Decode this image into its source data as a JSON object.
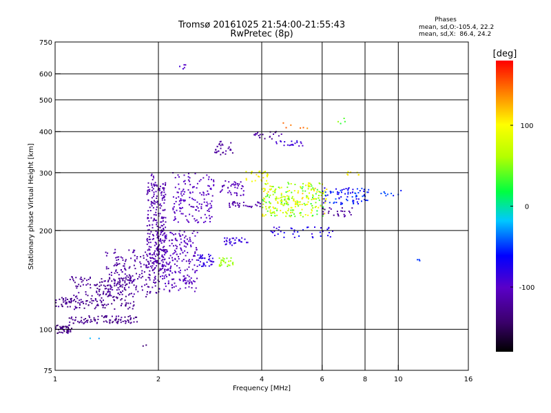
{
  "chart_data": {
    "type": "scatter",
    "title_line1": "Tromsø 20161025 21:54:00-21:55:43",
    "title_line2": "RwPretec (8p)",
    "xlabel": "Frequency [MHz]",
    "ylabel": "Stationary phase Virtual Height [km]",
    "x_scale": "log",
    "y_scale": "log",
    "xlim": [
      1,
      16
    ],
    "ylim": [
      75,
      750
    ],
    "x_ticks": [
      1,
      2,
      4,
      6,
      8,
      10,
      16
    ],
    "y_ticks": [
      75,
      100,
      200,
      300,
      400,
      500,
      600,
      750
    ],
    "grid_x": [
      2,
      4,
      6,
      8,
      10
    ],
    "grid_y": [
      100,
      200,
      300,
      400,
      500,
      600
    ],
    "grid": true,
    "stats": {
      "title": "Phases",
      "line_o": "mean, sd,O:-105.4, 22.2",
      "line_x": "mean, sd,X:  86.4, 24.2"
    },
    "colorbar": {
      "label": "[deg]",
      "min": -180,
      "max": 180,
      "ticks": [
        100,
        0,
        -100
      ],
      "tick_labels": [
        "100",
        "0",
        "-100"
      ]
    },
    "point_clusters": [
      {
        "f": [
          1.0,
          1.12
        ],
        "h": [
          97,
          103
        ],
        "phase": [
          -150,
          -110
        ],
        "n": 45
      },
      {
        "f": [
          1.0,
          1.12
        ],
        "h": [
          117,
          125
        ],
        "phase": [
          -140,
          -110
        ],
        "n": 30
      },
      {
        "f": [
          1.1,
          1.75
        ],
        "h": [
          104,
          110
        ],
        "phase": [
          -140,
          -115
        ],
        "n": 90
      },
      {
        "f": [
          1.1,
          1.7
        ],
        "h": [
          115,
          145
        ],
        "phase": [
          -135,
          -115
        ],
        "n": 200
      },
      {
        "f": [
          1.4,
          2.0
        ],
        "h": [
          125,
          175
        ],
        "phase": [
          -125,
          -110
        ],
        "n": 180
      },
      {
        "f": [
          1.85,
          2.1
        ],
        "h": [
          150,
          280
        ],
        "phase": [
          -120,
          -105
        ],
        "n": 260
      },
      {
        "f": [
          2.0,
          2.6
        ],
        "h": [
          130,
          200
        ],
        "phase": [
          -115,
          -95
        ],
        "n": 220
      },
      {
        "f": [
          2.2,
          2.9
        ],
        "h": [
          210,
          300
        ],
        "phase": [
          -110,
          -95
        ],
        "n": 150
      },
      {
        "f": [
          2.6,
          2.9
        ],
        "h": [
          155,
          170
        ],
        "phase": [
          -95,
          -75
        ],
        "n": 40
      },
      {
        "f": [
          2.9,
          3.3
        ],
        "h": [
          340,
          375
        ],
        "phase": [
          -130,
          -110
        ],
        "n": 30
      },
      {
        "f": [
          3.0,
          3.3
        ],
        "h": [
          155,
          165
        ],
        "phase": [
          40,
          70
        ],
        "n": 25
      },
      {
        "f": [
          3.1,
          3.7
        ],
        "h": [
          180,
          190
        ],
        "phase": [
          -90,
          -80
        ],
        "n": 30
      },
      {
        "f": [
          3.2,
          4.0
        ],
        "h": [
          235,
          245
        ],
        "phase": [
          -120,
          -110
        ],
        "n": 35
      },
      {
        "f": [
          3.0,
          3.6
        ],
        "h": [
          255,
          285
        ],
        "phase": [
          -115,
          -100
        ],
        "n": 40
      },
      {
        "f": [
          3.6,
          4.2
        ],
        "h": [
          280,
          305
        ],
        "phase": [
          80,
          110
        ],
        "n": 25
      },
      {
        "f": [
          3.8,
          4.6
        ],
        "h": [
          380,
          400
        ],
        "phase": [
          -130,
          -110
        ],
        "n": 20
      },
      {
        "f": [
          4.4,
          5.3
        ],
        "h": [
          360,
          375
        ],
        "phase": [
          -100,
          -80
        ],
        "n": 20
      },
      {
        "f": [
          4.0,
          6.2
        ],
        "h": [
          220,
          280
        ],
        "phase": [
          20,
          120
        ],
        "n": 260
      },
      {
        "f": [
          4.2,
          6.5
        ],
        "h": [
          190,
          205
        ],
        "phase": [
          -90,
          -60
        ],
        "n": 40
      },
      {
        "f": [
          6.0,
          8.2
        ],
        "h": [
          240,
          270
        ],
        "phase": [
          -80,
          -40
        ],
        "n": 80
      },
      {
        "f": [
          6.0,
          7.4
        ],
        "h": [
          220,
          235
        ],
        "phase": [
          -130,
          -110
        ],
        "n": 25
      },
      {
        "f": [
          7.0,
          8.0
        ],
        "h": [
          295,
          305
        ],
        "phase": [
          95,
          110
        ],
        "n": 8
      },
      {
        "f": [
          8.5,
          10.2
        ],
        "h": [
          255,
          265
        ],
        "phase": [
          -60,
          -40
        ],
        "n": 10
      },
      {
        "f": [
          11.2,
          11.8
        ],
        "h": [
          160,
          163
        ],
        "phase": [
          -55,
          -45
        ],
        "n": 3
      },
      {
        "f": [
          2.3,
          2.45
        ],
        "h": [
          600,
          640
        ],
        "phase": [
          -110,
          -90
        ],
        "n": 5
      },
      {
        "f": [
          1.9,
          2.0
        ],
        "h": [
          270,
          300
        ],
        "phase": [
          -120,
          -100
        ],
        "n": 10
      },
      {
        "f": [
          4.5,
          5.5
        ],
        "h": [
          405,
          425
        ],
        "phase": [
          130,
          160
        ],
        "n": 6
      },
      {
        "f": [
          6.3,
          7.2
        ],
        "h": [
          420,
          470
        ],
        "phase": [
          20,
          60
        ],
        "n": 4
      },
      {
        "f": [
          1.2,
          1.35
        ],
        "h": [
          92,
          95
        ],
        "phase": [
          -30,
          -20
        ],
        "n": 2
      },
      {
        "f": [
          1.8,
          1.85
        ],
        "h": [
          88,
          90
        ],
        "phase": [
          -140,
          -130
        ],
        "n": 2
      }
    ]
  }
}
